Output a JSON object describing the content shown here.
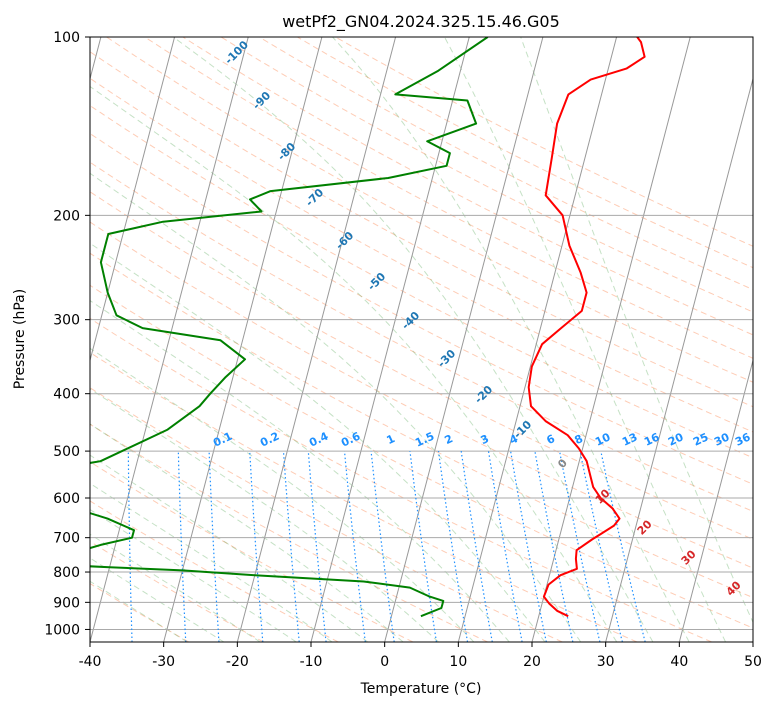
{
  "chart_data": {
    "type": "line",
    "subtype": "skew-T log-P diagram",
    "title": "wetPf2_GN04.2024.325.15.46.G05",
    "xlabel": "Temperature (°C)",
    "ylabel": "Pressure (hPa)",
    "xlim": [
      -40,
      50
    ],
    "ylim": [
      1050,
      100
    ],
    "y_scale": "log",
    "x_ticks": [
      -40,
      -30,
      -20,
      -10,
      0,
      10,
      20,
      30,
      40,
      50
    ],
    "y_ticks": [
      100,
      200,
      300,
      400,
      500,
      600,
      700,
      800,
      900,
      1000
    ],
    "grid": true,
    "series": [
      {
        "role": "temperature",
        "color": "#ff0000",
        "points": [
          [
            24.0,
            950
          ],
          [
            22.3,
            930
          ],
          [
            21.0,
            905
          ],
          [
            20.0,
            880
          ],
          [
            20.2,
            840
          ],
          [
            21.5,
            810
          ],
          [
            23.5,
            790
          ],
          [
            23.0,
            760
          ],
          [
            22.8,
            735
          ],
          [
            24.5,
            705
          ],
          [
            25.5,
            690
          ],
          [
            27.0,
            668
          ],
          [
            27.5,
            650
          ],
          [
            26.2,
            625
          ],
          [
            24.2,
            600
          ],
          [
            22.8,
            575
          ],
          [
            22.0,
            550
          ],
          [
            21.0,
            520
          ],
          [
            19.5,
            495
          ],
          [
            17.5,
            470
          ],
          [
            14.0,
            445
          ],
          [
            11.5,
            420
          ],
          [
            10.5,
            390
          ],
          [
            10.2,
            360
          ],
          [
            10.8,
            330
          ],
          [
            12.8,
            310
          ],
          [
            15.0,
            290
          ],
          [
            15.0,
            270
          ],
          [
            13.5,
            250
          ],
          [
            11.0,
            225
          ],
          [
            9.0,
            200
          ],
          [
            6.0,
            185
          ],
          [
            5.5,
            160
          ],
          [
            5.0,
            140
          ],
          [
            5.5,
            125
          ],
          [
            8.0,
            118
          ],
          [
            12.5,
            113
          ],
          [
            14.5,
            108
          ],
          [
            13.5,
            102
          ],
          [
            12.8,
            100
          ]
        ]
      },
      {
        "role": "dewpoint",
        "color": "#008000",
        "points": [
          [
            4.0,
            950
          ],
          [
            6.5,
            920
          ],
          [
            6.5,
            895
          ],
          [
            4.5,
            880
          ],
          [
            1.5,
            850
          ],
          [
            -5.0,
            830
          ],
          [
            -20.0,
            810
          ],
          [
            -30.0,
            795
          ],
          [
            -40.0,
            785
          ],
          [
            -50.0,
            775
          ],
          [
            -42.0,
            720
          ],
          [
            -38.0,
            700
          ],
          [
            -38.0,
            680
          ],
          [
            -42.0,
            650
          ],
          [
            -60.0,
            560
          ],
          [
            -45.0,
            520
          ],
          [
            -37.0,
            460
          ],
          [
            -33.5,
            420
          ],
          [
            -32.5,
            400
          ],
          [
            -31.0,
            375
          ],
          [
            -29.0,
            350
          ],
          [
            -33.0,
            325
          ],
          [
            -44.0,
            310
          ],
          [
            -48.0,
            295
          ],
          [
            -50.0,
            270
          ],
          [
            -52.0,
            240
          ],
          [
            -52.0,
            215
          ],
          [
            -45.0,
            205
          ],
          [
            -32.0,
            197
          ],
          [
            -34.0,
            188
          ],
          [
            -31.5,
            182
          ],
          [
            -16.0,
            173
          ],
          [
            -8.5,
            165
          ],
          [
            -8.5,
            157
          ],
          [
            -12.0,
            150
          ],
          [
            -6.0,
            140
          ],
          [
            -8.0,
            128
          ],
          [
            -18.0,
            125
          ],
          [
            -13.0,
            114
          ],
          [
            -7.5,
            100
          ]
        ]
      }
    ],
    "dry_adiabat_labels": [
      "-100",
      "-90",
      "-80",
      "-70",
      "-60",
      "-50",
      "-40",
      "-30",
      "-20",
      "-10"
    ],
    "moist_adiabat_labels": [
      "0",
      "10",
      "20",
      "30",
      "40"
    ],
    "mixing_ratio_labels": [
      "0.1",
      "0.2",
      "0.4",
      "0.6",
      "1",
      "1.5",
      "2",
      "3",
      "4",
      "6",
      "8",
      "10",
      "13",
      "16",
      "20",
      "25",
      "30",
      "36"
    ]
  }
}
